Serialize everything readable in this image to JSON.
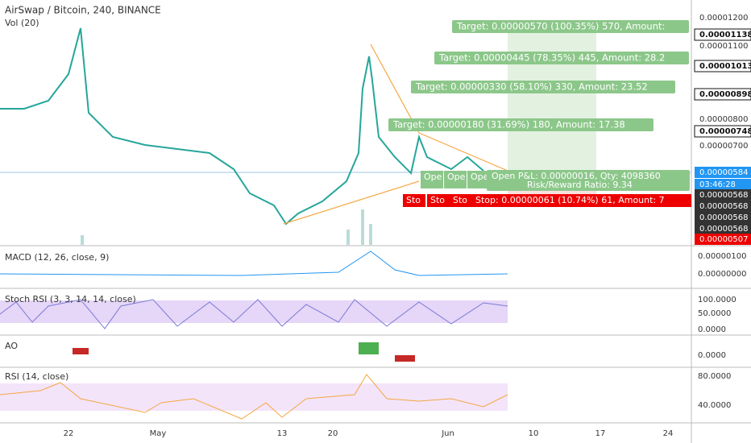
{
  "header": {
    "title": "AirSwap / Bitcoin, 240, BINANCE",
    "volume": "Vol (20)"
  },
  "price_axis": [
    "0.00001200",
    "0.00001100",
    "0.00000800",
    "0.00000700"
  ],
  "price_markers": [
    {
      "label": "0.00001138",
      "kind": "black"
    },
    {
      "label": "0.00001013",
      "kind": "black"
    },
    {
      "label": "0.00000898",
      "kind": "black"
    },
    {
      "label": "0.00000748",
      "kind": "black"
    },
    {
      "label": "0.00000584",
      "kind": "blue"
    },
    {
      "label": "03:46:28",
      "kind": "blue"
    },
    {
      "label": "0.00000568",
      "kind": "dark"
    },
    {
      "label": "0.00000568",
      "kind": "dark"
    },
    {
      "label": "0.00000568",
      "kind": "dark"
    },
    {
      "label": "0.00000568",
      "kind": "dark"
    },
    {
      "label": "0.00000568",
      "kind": "dark"
    },
    {
      "label": "0.00000507",
      "kind": "red"
    }
  ],
  "panes": [
    {
      "title": "MACD (12, 26, close, 9)",
      "axis": [
        "0.00000100",
        "0.00000000"
      ]
    },
    {
      "title": "Stoch RSI (3, 3, 14, 14, close)",
      "axis": [
        "100.0000",
        "50.0000",
        "0.0000"
      ]
    },
    {
      "title": "AO",
      "axis": [
        "0.0000"
      ]
    },
    {
      "title": "RSI (14, close)",
      "axis": [
        "80.0000",
        "40.0000"
      ]
    }
  ],
  "x_axis": [
    "22",
    "May",
    "13",
    "20",
    "Jun",
    "10",
    "17",
    "24"
  ],
  "position": {
    "targets": [
      "Target: 0.00000570 (100.35%) 570, Amount:",
      "Target: 0.00000445 (78.35%) 445, Amount: 28.2",
      "Target: 0.00000330 (58.10%) 330, Amount: 23.52",
      "Target: 0.00000180 (31.69%) 180, Amount: 17.38"
    ],
    "open_pnl": "Open P&L: 0.00000016, Qty: 4098360",
    "risk_reward": "Risk/Reward Ratio: 9.34",
    "stop": "Stop: 0.00000061 (10.74%) 61, Amount: 7",
    "open_short": [
      "Ope",
      "Ope",
      "Ope"
    ],
    "stop_short": [
      "Sto",
      "Sto",
      "Sto"
    ]
  }
}
